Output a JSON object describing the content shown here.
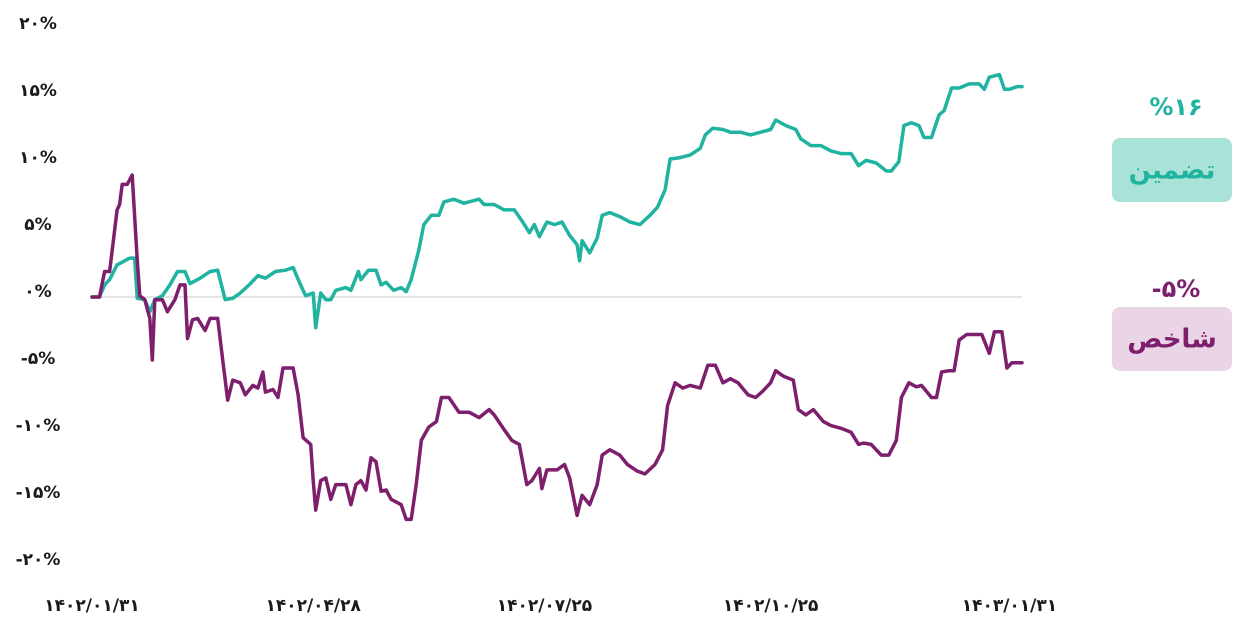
{
  "chart_data": {
    "type": "line",
    "xlim": [
      0,
      370
    ],
    "xticks": [
      {
        "value": 0,
        "label": "۱۴۰۲/۰۱/۳۱"
      },
      {
        "value": 88,
        "label": "۱۴۰۲/۰۴/۲۸"
      },
      {
        "value": 180,
        "label": "۱۴۰۲/۰۷/۲۵"
      },
      {
        "value": 270,
        "label": "۱۴۰۲/۱۰/۲۵"
      },
      {
        "value": 365,
        "label": "۱۴۰۳/۰۱/۳۱"
      }
    ],
    "ylim": [
      -20,
      20
    ],
    "yticks": [
      {
        "value": 20,
        "label": "۲۰%"
      },
      {
        "value": 15,
        "label": "۱۵%"
      },
      {
        "value": 10,
        "label": "۱۰%"
      },
      {
        "value": 5,
        "label": "۵%"
      },
      {
        "value": 0,
        "label": "۰%"
      },
      {
        "value": -5,
        "label": "-۵%"
      },
      {
        "value": -10,
        "label": "-۱۰%"
      },
      {
        "value": -15,
        "label": "-۱۵%"
      },
      {
        "value": -20,
        "label": "-۲۰%"
      }
    ],
    "zero_line": true,
    "series": [
      {
        "name": "تضمین",
        "color": "#1fb3a0",
        "badge_color": "#a9e2d7",
        "return_label": "%۱۶",
        "x": [
          0,
          3,
          5,
          7,
          10,
          12,
          15,
          17,
          18,
          21,
          23,
          25,
          28,
          31,
          34,
          37,
          39,
          43,
          47,
          50,
          53,
          56,
          59,
          63,
          66,
          69,
          73,
          77,
          80,
          83,
          85,
          88,
          89,
          91,
          93,
          95,
          97,
          101,
          103,
          106,
          107,
          110,
          113,
          115,
          117,
          120,
          123,
          125,
          127,
          130,
          132,
          135,
          138,
          140,
          144,
          148,
          154,
          156,
          160,
          164,
          168,
          171,
          174,
          176,
          178,
          181,
          184,
          187,
          190,
          193,
          194,
          195,
          198,
          201,
          203,
          206,
          210,
          214,
          218,
          222,
          225,
          228,
          230,
          234,
          238,
          242,
          244,
          247,
          251,
          254,
          258,
          262,
          266,
          270,
          272,
          276,
          280,
          282,
          286,
          290,
          294,
          298,
          302,
          305,
          308,
          312,
          316,
          318,
          321,
          323,
          326,
          329,
          331,
          334,
          337,
          339,
          342,
          345,
          349,
          353,
          355,
          357,
          361,
          363,
          365,
          368,
          370
        ],
        "values": [
          0.0,
          0.0,
          0.9,
          1.3,
          2.4,
          2.6,
          2.9,
          2.9,
          -0.1,
          -0.2,
          -1.1,
          -0.2,
          0.1,
          0.9,
          1.9,
          1.9,
          1.0,
          1.4,
          1.9,
          2.0,
          -0.2,
          -0.1,
          0.3,
          1.0,
          1.6,
          1.4,
          1.9,
          2.0,
          2.2,
          0.9,
          0.1,
          0.3,
          -2.3,
          0.3,
          -0.2,
          -0.2,
          0.5,
          0.7,
          0.5,
          1.9,
          1.3,
          2.0,
          2.0,
          0.9,
          1.1,
          0.5,
          0.7,
          0.4,
          1.3,
          3.5,
          5.4,
          6.1,
          6.1,
          7.1,
          7.3,
          7.0,
          7.3,
          6.9,
          6.9,
          6.5,
          6.5,
          5.7,
          4.8,
          5.4,
          4.5,
          5.6,
          5.4,
          5.6,
          4.6,
          3.9,
          2.7,
          4.2,
          3.3,
          4.4,
          6.1,
          6.3,
          6.0,
          5.6,
          5.4,
          6.1,
          6.7,
          8.0,
          10.3,
          10.4,
          10.6,
          11.1,
          12.1,
          12.6,
          12.5,
          12.3,
          12.3,
          12.1,
          12.3,
          12.5,
          13.2,
          12.8,
          12.5,
          11.8,
          11.3,
          11.3,
          10.9,
          10.7,
          10.7,
          9.8,
          10.2,
          10.0,
          9.4,
          9.4,
          10.1,
          12.8,
          13.0,
          12.8,
          11.9,
          11.9,
          13.6,
          13.9,
          15.6,
          15.6,
          15.9,
          15.9,
          15.5,
          16.4,
          16.6,
          15.5,
          15.5,
          15.7,
          15.7
        ]
      },
      {
        "name": "شاخص",
        "color": "#7e1f6d",
        "badge_color": "#ead5e6",
        "return_label": "-۵%",
        "x": [
          0,
          3,
          5,
          7,
          10,
          11,
          12,
          14,
          16,
          18,
          19,
          21,
          23,
          24,
          25,
          28,
          30,
          33,
          35,
          37,
          38,
          40,
          42,
          45,
          47,
          50,
          52,
          54,
          56,
          59,
          61,
          64,
          66,
          68,
          69,
          72,
          74,
          76,
          80,
          82,
          84,
          87,
          88,
          89,
          91,
          93,
          95,
          97,
          101,
          103,
          105,
          107,
          109,
          111,
          113,
          115,
          117,
          119,
          123,
          125,
          127,
          129,
          131,
          134,
          137,
          139,
          142,
          146,
          150,
          154,
          158,
          160,
          164,
          167,
          170,
          173,
          175,
          178,
          179,
          181,
          185,
          188,
          190,
          193,
          195,
          198,
          201,
          203,
          206,
          210,
          213,
          217,
          220,
          224,
          227,
          229,
          232,
          235,
          238,
          242,
          245,
          248,
          251,
          254,
          257,
          261,
          264,
          267,
          270,
          272,
          275,
          279,
          281,
          284,
          287,
          291,
          294,
          298,
          302,
          305,
          307,
          310,
          314,
          317,
          320,
          322,
          325,
          328,
          330,
          334,
          336,
          338,
          341,
          343,
          345,
          348,
          352,
          354,
          357,
          359,
          362,
          364,
          366,
          370
        ],
        "values": [
          0.0,
          0.0,
          1.9,
          1.9,
          6.5,
          6.9,
          8.4,
          8.4,
          9.1,
          2.8,
          0.1,
          -0.2,
          -1.6,
          -4.7,
          -0.2,
          -0.2,
          -1.1,
          -0.2,
          0.9,
          0.9,
          -3.1,
          -1.7,
          -1.6,
          -2.5,
          -1.6,
          -1.6,
          -4.7,
          -7.7,
          -6.2,
          -6.4,
          -7.3,
          -6.6,
          -6.8,
          -5.6,
          -7.1,
          -6.9,
          -7.5,
          -5.3,
          -5.3,
          -7.3,
          -10.5,
          -11.0,
          -13.7,
          -15.9,
          -13.7,
          -13.5,
          -15.1,
          -14.0,
          -14.0,
          -15.5,
          -14.0,
          -13.7,
          -14.4,
          -12.0,
          -12.3,
          -14.5,
          -14.4,
          -15.1,
          -15.5,
          -16.6,
          -16.6,
          -14.0,
          -10.7,
          -9.7,
          -9.3,
          -7.5,
          -7.5,
          -8.6,
          -8.6,
          -9.0,
          -8.4,
          -8.8,
          -9.9,
          -10.7,
          -11.0,
          -14.0,
          -13.7,
          -12.8,
          -14.3,
          -12.9,
          -12.9,
          -12.5,
          -13.5,
          -16.3,
          -14.8,
          -15.5,
          -14.0,
          -11.8,
          -11.4,
          -11.8,
          -12.5,
          -13.0,
          -13.2,
          -12.5,
          -11.4,
          -8.1,
          -6.4,
          -6.8,
          -6.6,
          -6.8,
          -5.1,
          -5.1,
          -6.4,
          -6.1,
          -6.4,
          -7.3,
          -7.5,
          -7.0,
          -6.4,
          -5.5,
          -5.9,
          -6.2,
          -8.4,
          -8.8,
          -8.4,
          -9.3,
          -9.6,
          -9.8,
          -10.1,
          -11.0,
          -10.9,
          -11.0,
          -11.8,
          -11.8,
          -10.7,
          -7.5,
          -6.4,
          -6.7,
          -6.6,
          -7.5,
          -7.5,
          -5.6,
          -5.5,
          -5.5,
          -3.2,
          -2.8,
          -2.8,
          -2.8,
          -4.2,
          -2.6,
          -2.6,
          -5.3,
          -4.9,
          -4.9
        ]
      }
    ]
  }
}
